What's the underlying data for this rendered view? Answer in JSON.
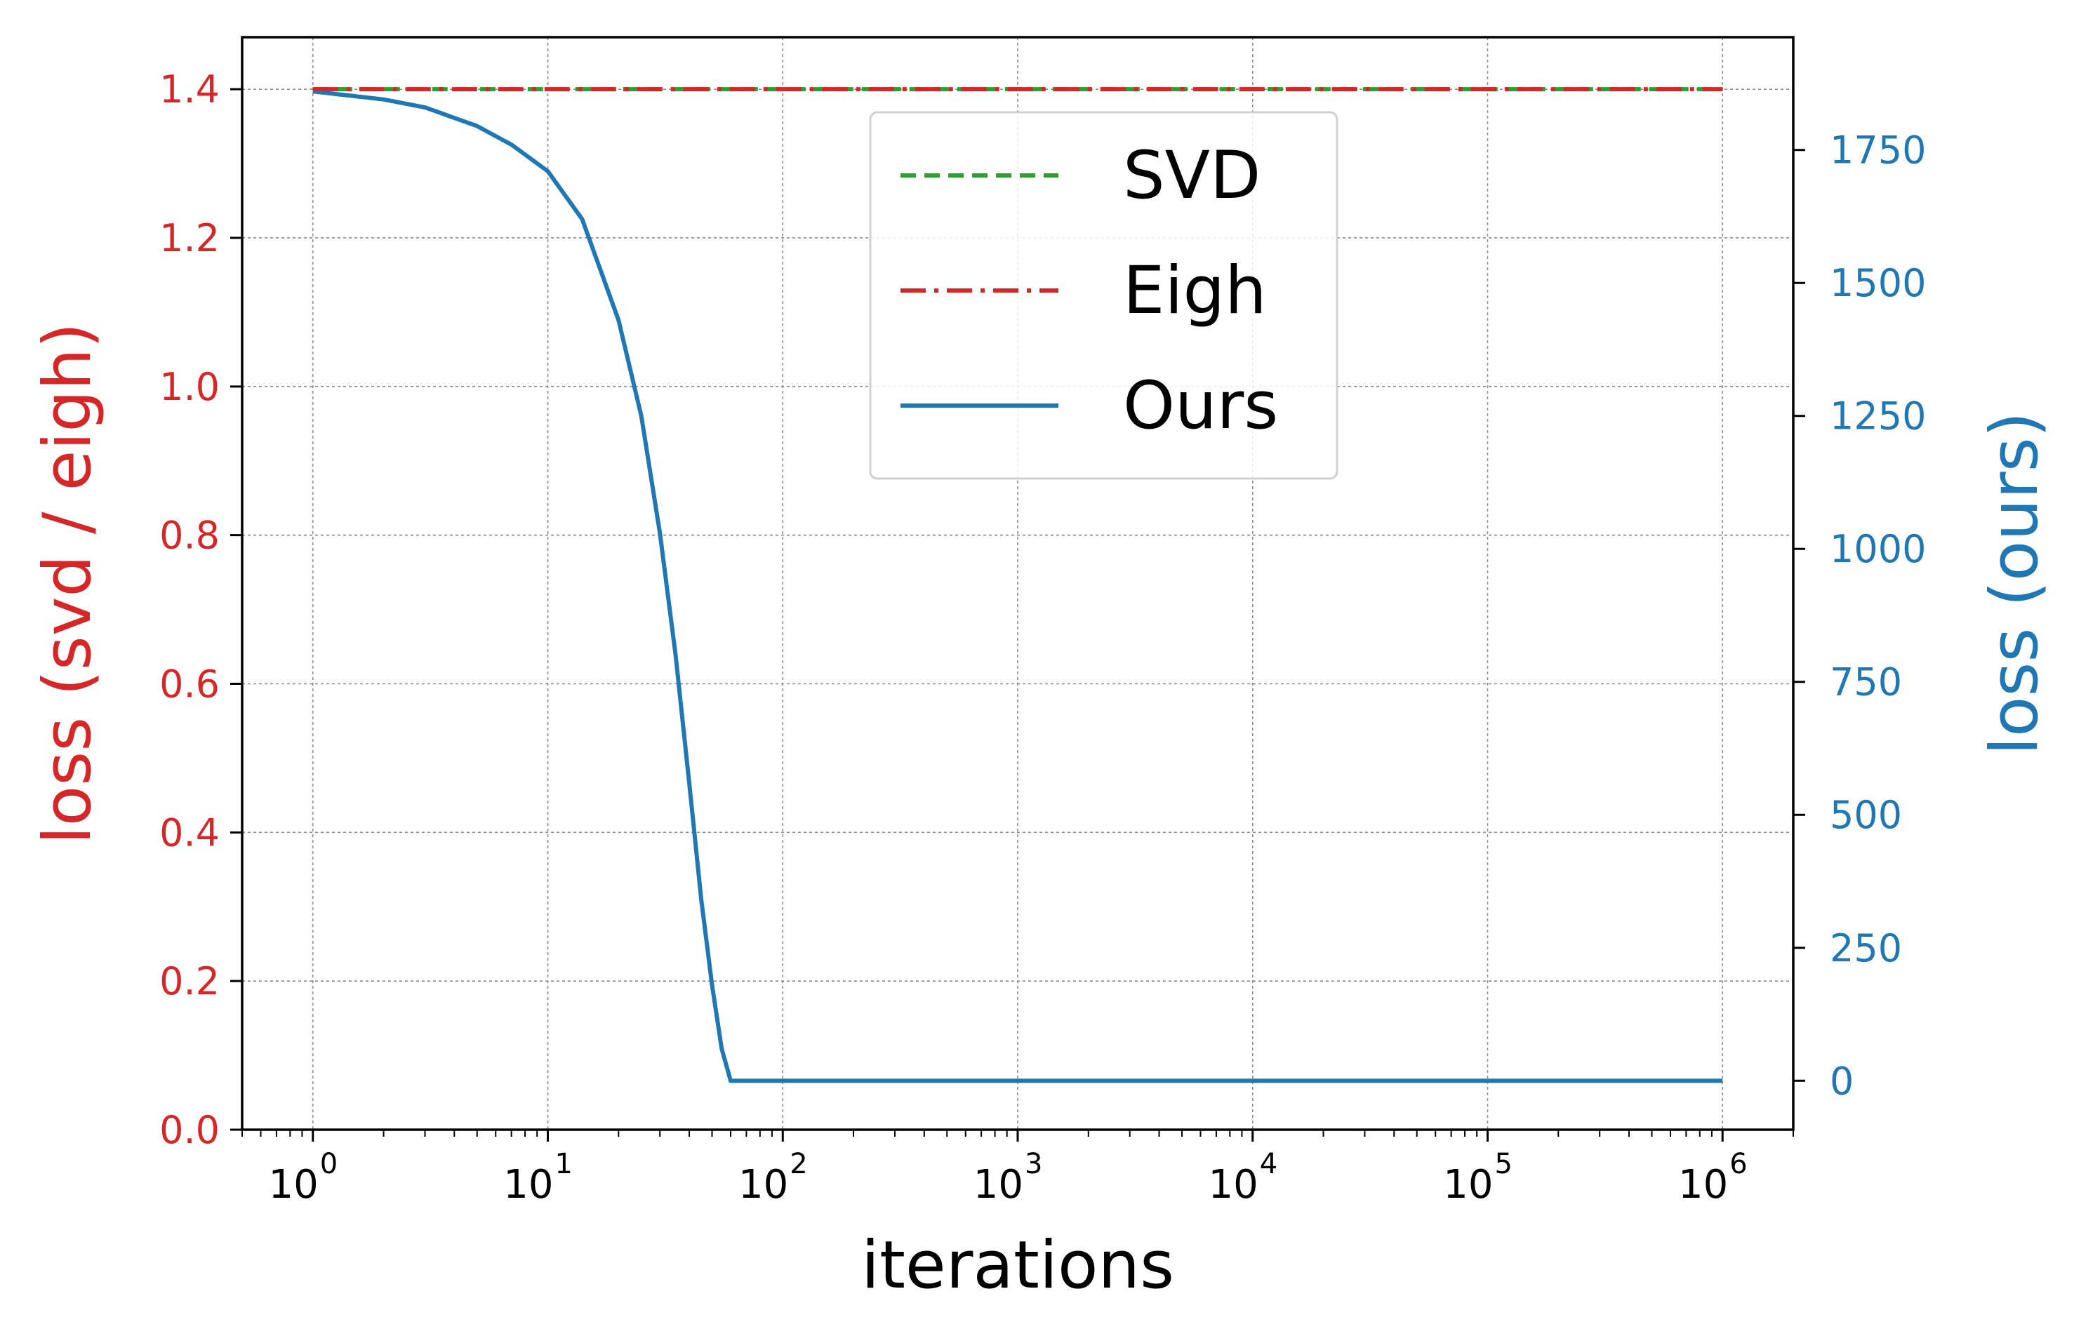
{
  "chart_data": {
    "type": "line",
    "xlabel": "iterations",
    "x_scale": "log",
    "xlim": [
      0.5,
      2000000
    ],
    "x_ticks": [
      {
        "value": 1,
        "base": "10",
        "exp": "0"
      },
      {
        "value": 10,
        "base": "10",
        "exp": "1"
      },
      {
        "value": 100,
        "base": "10",
        "exp": "2"
      },
      {
        "value": 1000,
        "base": "10",
        "exp": "3"
      },
      {
        "value": 10000,
        "base": "10",
        "exp": "4"
      },
      {
        "value": 100000,
        "base": "10",
        "exp": "5"
      },
      {
        "value": 1000000,
        "base": "10",
        "exp": "6"
      }
    ],
    "y_left": {
      "label": "loss (svd / eigh)",
      "color": "#d62728",
      "ylim": [
        0.0,
        1.47
      ],
      "ticks": [
        "0.0",
        "0.2",
        "0.4",
        "0.6",
        "0.8",
        "1.0",
        "1.2",
        "1.4"
      ]
    },
    "y_right": {
      "label": "loss (ours)",
      "color": "#1f77b4",
      "ylim": [
        -92,
        1962
      ],
      "ticks": [
        "0",
        "250",
        "500",
        "750",
        "1000",
        "1250",
        "1500",
        "1750"
      ]
    },
    "grid": true,
    "legend": {
      "position": "upper-center",
      "entries": [
        {
          "label": "SVD",
          "color": "#2ca02c",
          "style": "dashed"
        },
        {
          "label": "Eigh",
          "color": "#d62728",
          "style": "dashdot"
        },
        {
          "label": "Ours",
          "color": "#1f77b4",
          "style": "solid"
        }
      ]
    },
    "series": [
      {
        "name": "SVD",
        "axis": "left",
        "color": "#2ca02c",
        "style": "dashed",
        "x": [
          1,
          1000000
        ],
        "y": [
          1.4,
          1.4
        ]
      },
      {
        "name": "Eigh",
        "axis": "left",
        "color": "#d62728",
        "style": "dashdot",
        "x": [
          1,
          1000000
        ],
        "y": [
          1.4,
          1.4
        ]
      },
      {
        "name": "Ours",
        "axis": "right",
        "color": "#1f77b4",
        "style": "solid",
        "x": [
          1,
          2,
          3,
          5,
          7,
          10,
          14,
          20,
          25,
          30,
          35,
          40,
          45,
          50,
          55,
          60,
          100,
          1000,
          10000,
          100000,
          1000000
        ],
        "y": [
          1860,
          1845,
          1830,
          1795,
          1760,
          1710,
          1620,
          1430,
          1250,
          1030,
          800,
          560,
          340,
          180,
          60,
          0,
          0,
          0,
          0,
          0,
          0
        ]
      }
    ]
  }
}
